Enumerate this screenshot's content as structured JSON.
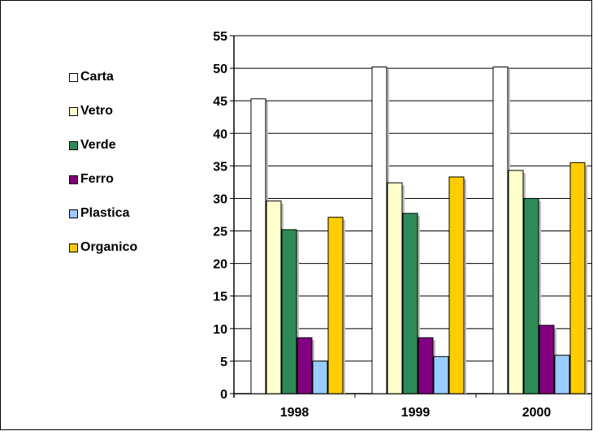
{
  "chart_data": {
    "type": "bar",
    "categories": [
      "1998",
      "1999",
      "2000"
    ],
    "series": [
      {
        "name": "Carta",
        "color": "#FFFFFF",
        "values": [
          45.3,
          50.2,
          50.2
        ]
      },
      {
        "name": "Vetro",
        "color": "#FFFFCC",
        "values": [
          29.6,
          32.4,
          34.3
        ]
      },
      {
        "name": "Verde",
        "color": "#2E8B57",
        "values": [
          25.2,
          27.7,
          30.0
        ]
      },
      {
        "name": "Ferro",
        "color": "#800080",
        "values": [
          8.6,
          8.6,
          10.5
        ]
      },
      {
        "name": "Plastica",
        "color": "#99CCFF",
        "values": [
          5.0,
          5.7,
          5.9
        ]
      },
      {
        "name": "Organico",
        "color": "#FFCC00",
        "values": [
          27.1,
          33.3,
          35.5
        ]
      }
    ],
    "ylim": [
      0,
      55
    ],
    "yticks": [
      0,
      5,
      10,
      15,
      20,
      25,
      30,
      35,
      40,
      45,
      50,
      55
    ],
    "grid": true,
    "legend": "left"
  }
}
